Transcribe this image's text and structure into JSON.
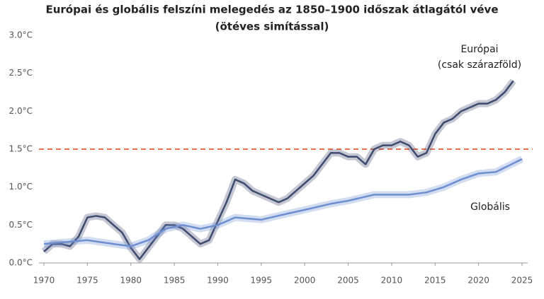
{
  "chart_data": {
    "type": "line",
    "title": "Európai és globális felszíni melegedés az 1850–1900 időszak átlagától véve",
    "subtitle": "(ötéves simítással)",
    "xlim": [
      1970,
      2025
    ],
    "xticks": [
      1970,
      1975,
      1980,
      1985,
      1990,
      1995,
      2000,
      2005,
      2010,
      2015,
      2020,
      2025
    ],
    "ylim": [
      0,
      3
    ],
    "yticks": [
      {
        "value": 0,
        "label": "0.0°C"
      },
      {
        "value": 0.5,
        "label": "0.5°C"
      },
      {
        "value": 1,
        "label": "1.0°C"
      },
      {
        "value": 1.5,
        "label": "1.5°C"
      },
      {
        "value": 2,
        "label": "2.0°C"
      },
      {
        "value": 2.5,
        "label": "2.5°C"
      },
      {
        "value": 3,
        "label": "3.0°C"
      }
    ],
    "reference_line": {
      "value": 1.5,
      "color": "#e8704a"
    },
    "series": [
      {
        "name": "Európai",
        "label_lines": [
          "Európai",
          "(csak szárazföld)"
        ],
        "color": "#3e4a6e",
        "x": [
          1970,
          1971,
          1972,
          1973,
          1974,
          1975,
          1976,
          1977,
          1978,
          1979,
          1980,
          1981,
          1982,
          1983,
          1984,
          1985,
          1986,
          1987,
          1988,
          1989,
          1990,
          1991,
          1992,
          1993,
          1994,
          1995,
          1996,
          1997,
          1998,
          1999,
          2000,
          2001,
          2002,
          2003,
          2004,
          2005,
          2006,
          2007,
          2008,
          2009,
          2010,
          2011,
          2012,
          2013,
          2014,
          2015,
          2016,
          2017,
          2018,
          2019,
          2020,
          2021,
          2022,
          2023,
          2024
        ],
        "values": [
          0.15,
          0.25,
          0.25,
          0.22,
          0.35,
          0.6,
          0.62,
          0.6,
          0.5,
          0.4,
          0.2,
          0.05,
          0.2,
          0.35,
          0.5,
          0.5,
          0.45,
          0.35,
          0.25,
          0.3,
          0.55,
          0.8,
          1.1,
          1.05,
          0.95,
          0.9,
          0.85,
          0.8,
          0.85,
          0.95,
          1.05,
          1.15,
          1.3,
          1.45,
          1.45,
          1.4,
          1.4,
          1.3,
          1.5,
          1.55,
          1.55,
          1.6,
          1.55,
          1.4,
          1.45,
          1.7,
          1.85,
          1.9,
          2.0,
          2.05,
          2.1,
          2.1,
          2.15,
          2.25,
          2.4
        ]
      },
      {
        "name": "Globális",
        "label_lines": [
          "Globális"
        ],
        "color": "#6d8fd1",
        "x": [
          1970,
          1975,
          1978,
          1980,
          1982,
          1984,
          1986,
          1988,
          1990,
          1992,
          1995,
          1998,
          2000,
          2003,
          2005,
          2008,
          2010,
          2012,
          2014,
          2016,
          2018,
          2020,
          2022,
          2025
        ],
        "values": [
          0.25,
          0.3,
          0.25,
          0.22,
          0.3,
          0.45,
          0.5,
          0.45,
          0.5,
          0.6,
          0.57,
          0.65,
          0.7,
          0.78,
          0.82,
          0.9,
          0.9,
          0.9,
          0.93,
          1.0,
          1.1,
          1.18,
          1.2,
          1.37
        ]
      }
    ]
  }
}
